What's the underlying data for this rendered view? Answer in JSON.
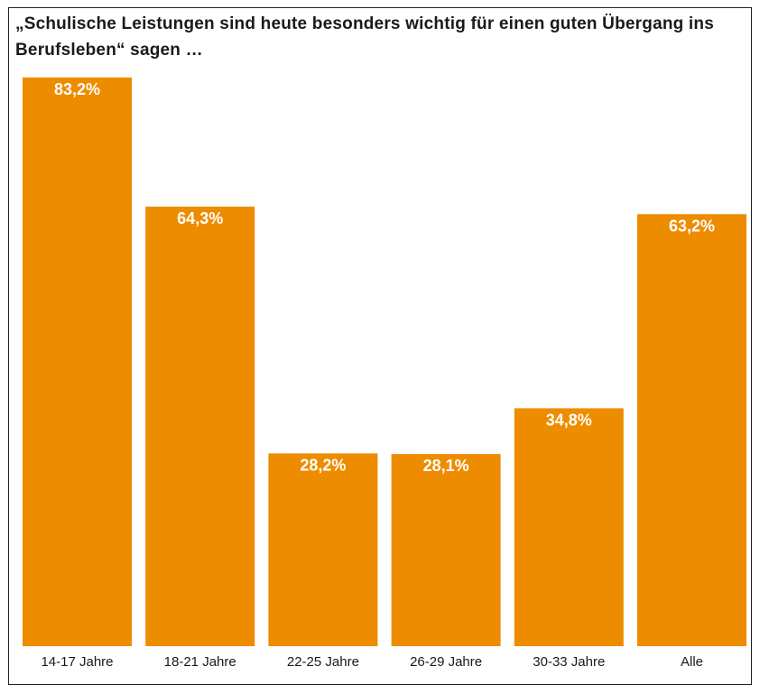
{
  "chart_data": {
    "type": "bar",
    "title": "„Schulische Leistungen sind heute besonders wichtig für einen guten Übergang ins Berufsleben“ sagen …",
    "categories": [
      "14-17 Jahre",
      "18-21 Jahre",
      "22-25 Jahre",
      "26-29 Jahre",
      "30-33 Jahre",
      "Alle"
    ],
    "values": [
      83.2,
      64.3,
      28.2,
      28.1,
      34.8,
      63.2
    ],
    "data_labels": [
      "83,2%",
      "64,3%",
      "28,2%",
      "28,1%",
      "34,8%",
      "63,2%"
    ],
    "unit": "%",
    "ylim": [
      0,
      100
    ],
    "grid": false,
    "legend": "none",
    "bar_color": "#ee8c00",
    "label_color": "#ffffff"
  }
}
